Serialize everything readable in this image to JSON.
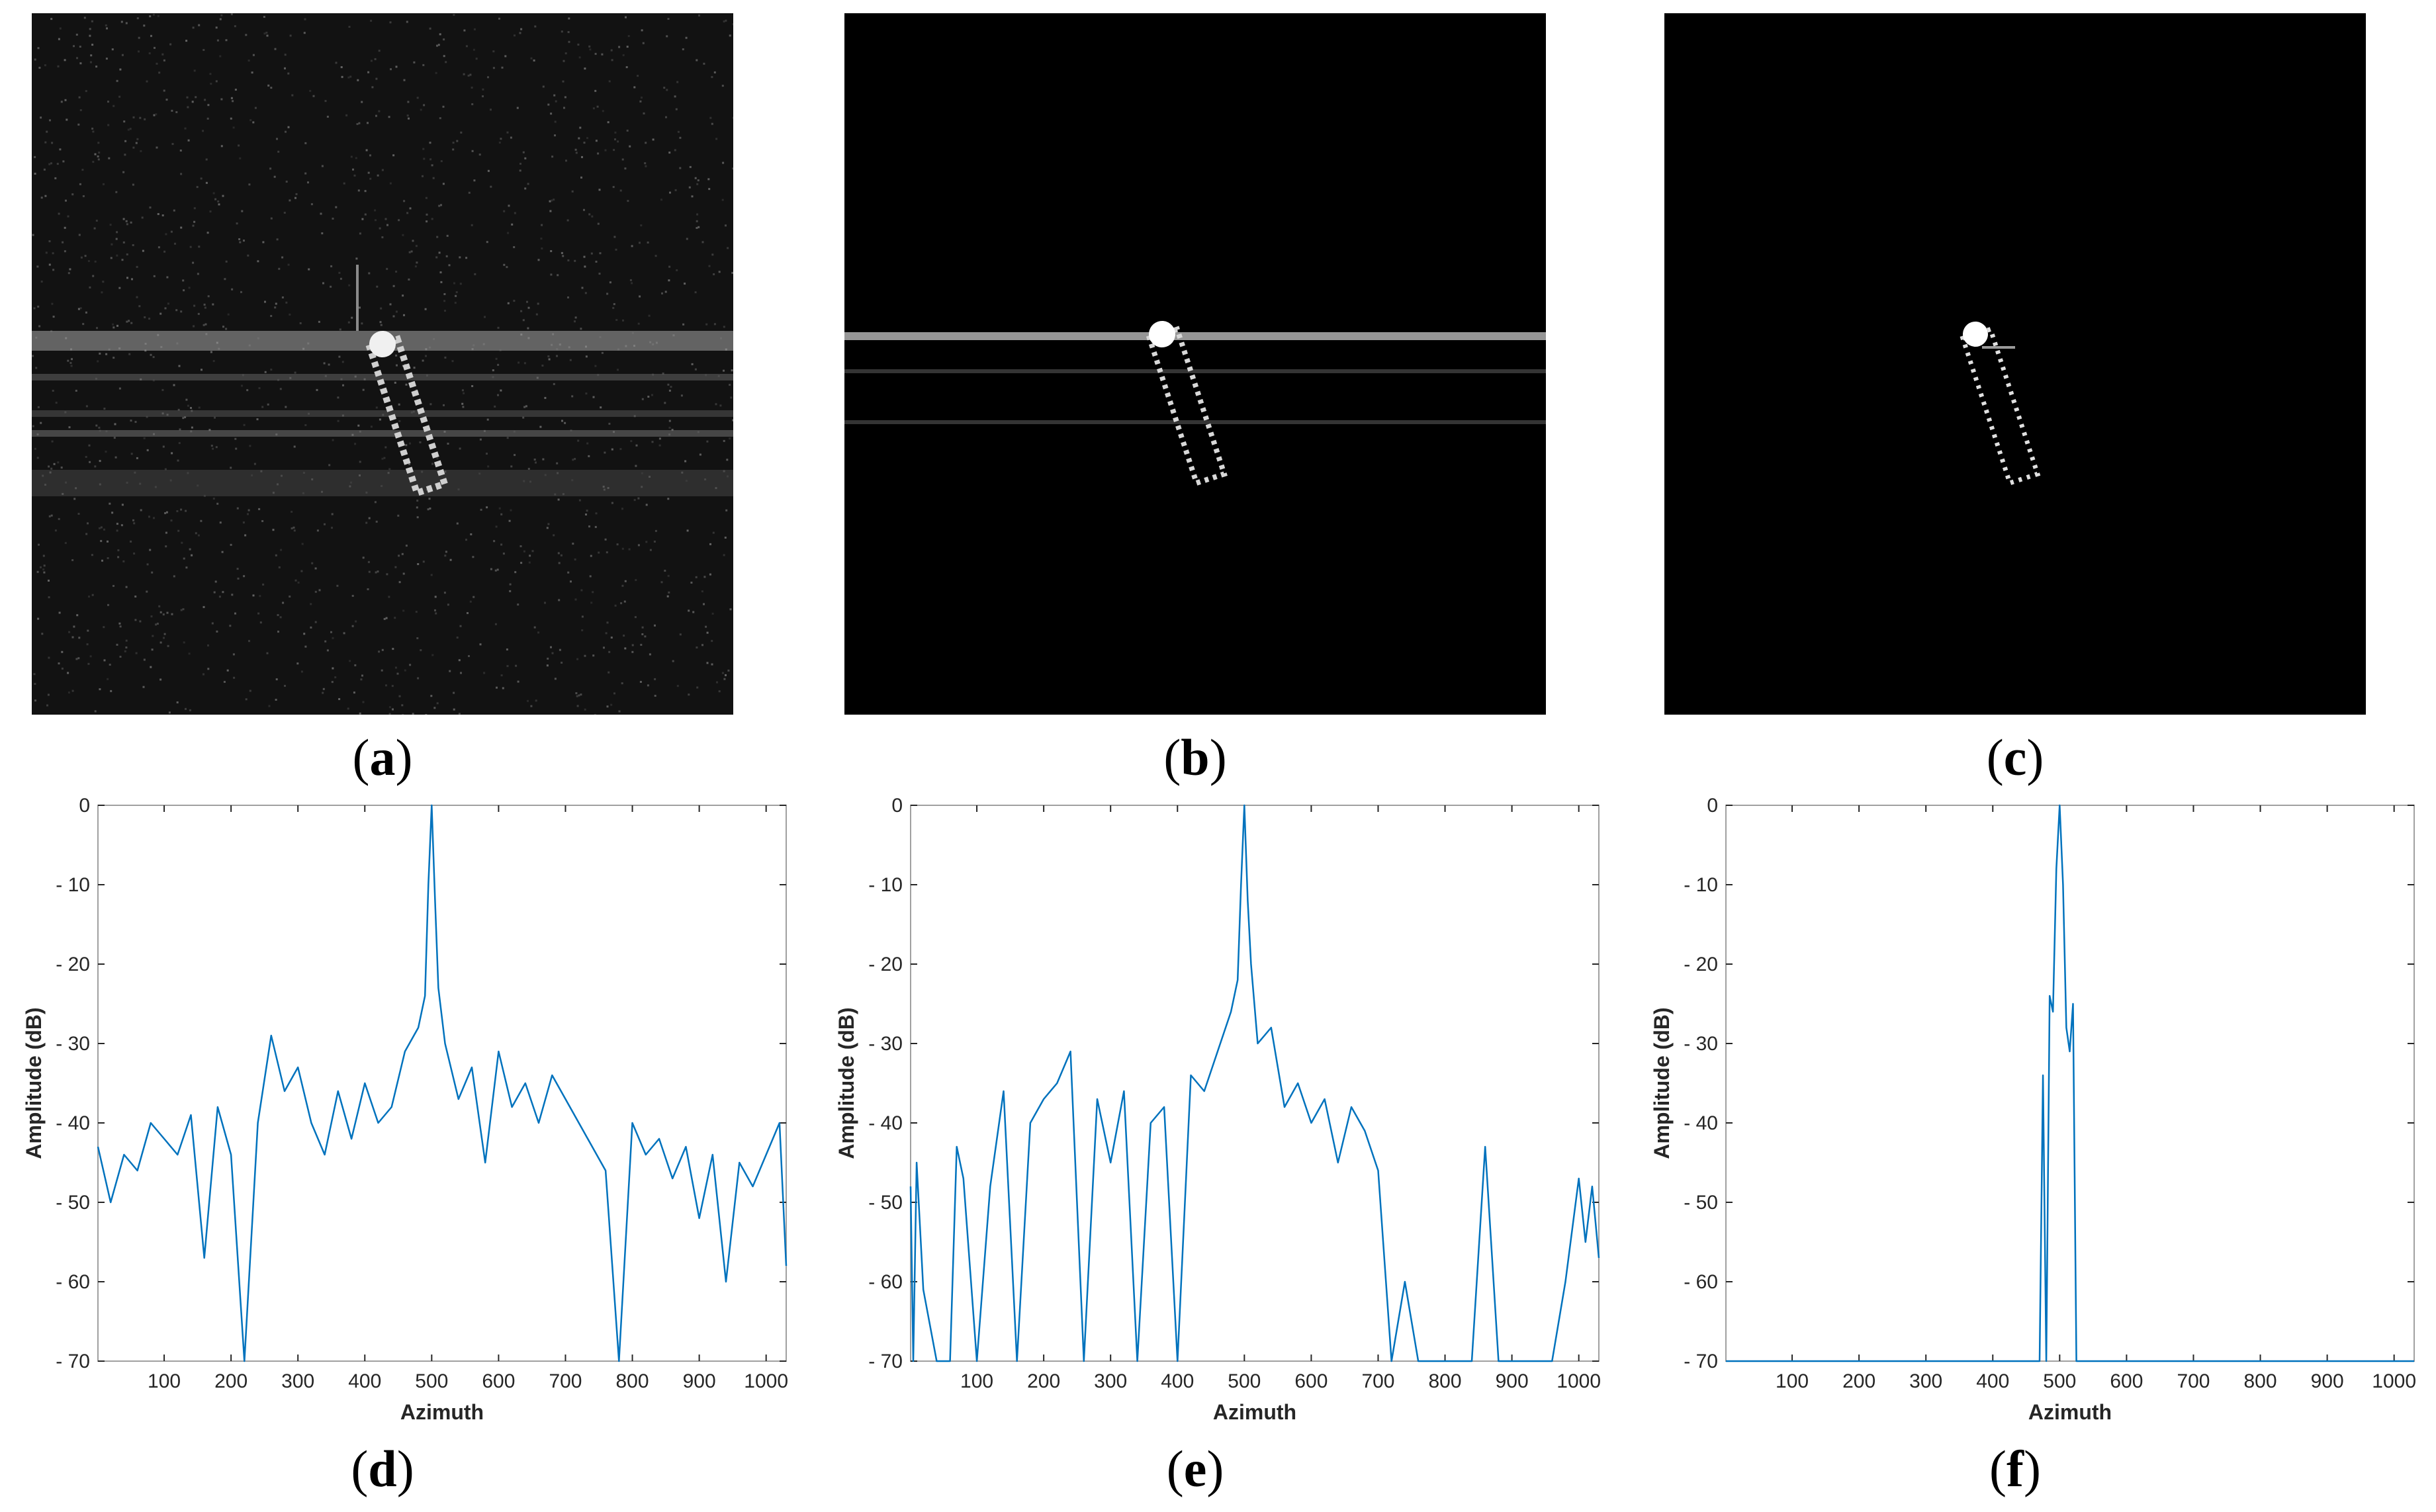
{
  "captions": {
    "a": "a",
    "b": "b",
    "c": "c",
    "d": "d",
    "e": "e",
    "f": "f"
  },
  "images": [
    {
      "id": "a",
      "description_kind": "sar-image-noisy",
      "background": "#0f0f0f"
    },
    {
      "id": "b",
      "description_kind": "sar-image-sidelobe-reduced",
      "background": "#000000"
    },
    {
      "id": "c",
      "description_kind": "sar-image-clean",
      "background": "#000000"
    }
  ],
  "colors": {
    "line": "#0072BD",
    "axes": "#262626",
    "frame": "#a0a0a0"
  },
  "chart_data": [
    {
      "type": "line",
      "panel": "d",
      "xlabel": "Azimuth",
      "ylabel": "Amplitude (dB)",
      "xlim": [
        1,
        1030
      ],
      "ylim": [
        -70,
        0
      ],
      "xticks": [
        100,
        200,
        300,
        400,
        500,
        600,
        700,
        800,
        900,
        1000
      ],
      "yticks": [
        0,
        -10,
        -20,
        -30,
        -40,
        -50,
        -60,
        -70
      ],
      "ytick_labels": [
        "0",
        "- 10",
        "- 20",
        "- 30",
        "- 40",
        "- 50",
        "- 60",
        "- 70"
      ],
      "peak_x": 500,
      "series": [
        {
          "x": [
            1,
            20,
            40,
            60,
            80,
            100,
            120,
            140,
            160,
            180,
            200,
            220,
            240,
            260,
            280,
            300,
            320,
            340,
            360,
            380,
            400,
            420,
            440,
            460,
            480,
            490,
            495,
            500,
            505,
            510,
            520,
            540,
            560,
            580,
            600,
            620,
            640,
            660,
            680,
            700,
            720,
            740,
            760,
            780,
            800,
            820,
            840,
            860,
            880,
            900,
            920,
            940,
            960,
            980,
            1000,
            1020,
            1030
          ],
          "values": [
            -43,
            -50,
            -44,
            -46,
            -40,
            -42,
            -44,
            -39,
            -57,
            -38,
            -44,
            -70,
            -40,
            -29,
            -36,
            -33,
            -40,
            -44,
            -36,
            -42,
            -35,
            -40,
            -38,
            -31,
            -28,
            -24,
            -10,
            0,
            -12,
            -23,
            -30,
            -37,
            -33,
            -45,
            -31,
            -38,
            -35,
            -40,
            -34,
            -37,
            -40,
            -43,
            -46,
            -70,
            -40,
            -44,
            -42,
            -47,
            -43,
            -52,
            -44,
            -60,
            -45,
            -48,
            -44,
            -40,
            -58
          ]
        }
      ]
    },
    {
      "type": "line",
      "panel": "e",
      "xlabel": "Azimuth",
      "ylabel": "Amplitude (dB)",
      "xlim": [
        1,
        1030
      ],
      "ylim": [
        -70,
        0
      ],
      "xticks": [
        100,
        200,
        300,
        400,
        500,
        600,
        700,
        800,
        900,
        1000
      ],
      "yticks": [
        0,
        -10,
        -20,
        -30,
        -40,
        -50,
        -60,
        -70
      ],
      "ytick_labels": [
        "0",
        "- 10",
        "- 20",
        "- 30",
        "- 40",
        "- 50",
        "- 60",
        "- 70"
      ],
      "peak_x": 500,
      "series": [
        {
          "x": [
            1,
            5,
            10,
            20,
            40,
            60,
            70,
            80,
            100,
            120,
            140,
            160,
            180,
            200,
            220,
            240,
            260,
            280,
            300,
            320,
            340,
            360,
            380,
            400,
            420,
            440,
            460,
            480,
            490,
            495,
            500,
            505,
            510,
            520,
            540,
            560,
            580,
            600,
            620,
            640,
            660,
            680,
            700,
            720,
            740,
            760,
            780,
            800,
            820,
            840,
            860,
            880,
            900,
            940,
            960,
            980,
            1000,
            1010,
            1020,
            1030
          ],
          "values": [
            -48,
            -70,
            -45,
            -61,
            -70,
            -70,
            -43,
            -47,
            -70,
            -48,
            -36,
            -70,
            -40,
            -37,
            -35,
            -31,
            -70,
            -37,
            -45,
            -36,
            -70,
            -40,
            -38,
            -70,
            -34,
            -36,
            -31,
            -26,
            -22,
            -10,
            0,
            -12,
            -20,
            -30,
            -28,
            -38,
            -35,
            -40,
            -37,
            -45,
            -38,
            -41,
            -46,
            -70,
            -60,
            -70,
            -70,
            -70,
            -70,
            -70,
            -43,
            -70,
            -70,
            -70,
            -70,
            -60,
            -47,
            -55,
            -48,
            -57
          ]
        }
      ]
    },
    {
      "type": "line",
      "panel": "f",
      "xlabel": "Azimuth",
      "ylabel": "Amplitude (dB)",
      "xlim": [
        1,
        1030
      ],
      "ylim": [
        -70,
        0
      ],
      "xticks": [
        100,
        200,
        300,
        400,
        500,
        600,
        700,
        800,
        900,
        1000
      ],
      "yticks": [
        0,
        -10,
        -20,
        -30,
        -40,
        -50,
        -60,
        -70
      ],
      "ytick_labels": [
        "0",
        "- 10",
        "- 20",
        "- 30",
        "- 40",
        "- 50",
        "- 60",
        "- 70"
      ],
      "peak_x": 500,
      "series": [
        {
          "x": [
            1,
            470,
            475,
            480,
            485,
            490,
            495,
            500,
            505,
            510,
            515,
            520,
            525,
            1030
          ],
          "values": [
            -70,
            -70,
            -34,
            -70,
            -24,
            -26,
            -8,
            0,
            -10,
            -28,
            -31,
            -25,
            -70,
            -70
          ]
        }
      ]
    }
  ]
}
